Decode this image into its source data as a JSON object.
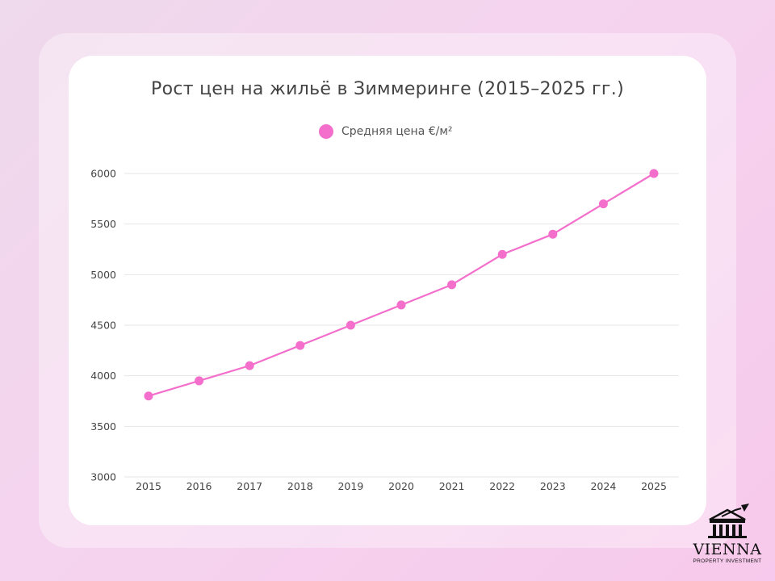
{
  "chart_data": {
    "type": "line",
    "title": "Рост цен на жильё в Зиммеринге (2015–2025 гг.)",
    "xlabel": "",
    "ylabel": "",
    "categories": [
      "2015",
      "2016",
      "2017",
      "2018",
      "2019",
      "2020",
      "2021",
      "2022",
      "2023",
      "2024",
      "2025"
    ],
    "series": [
      {
        "name": "Средняя цена €/м²",
        "color": "#f36fcb",
        "values": [
          3800,
          3950,
          4100,
          4300,
          4500,
          4700,
          4900,
          5200,
          5400,
          5700,
          6000
        ]
      }
    ],
    "yticks": [
      3000,
      3500,
      4000,
      4500,
      5000,
      5500,
      6000
    ],
    "ylim": [
      3000,
      6000
    ],
    "grid": true,
    "legend": "top-center"
  },
  "branding": {
    "name": "VIENNA",
    "tagline": "PROPERTY INVESTMENT"
  }
}
